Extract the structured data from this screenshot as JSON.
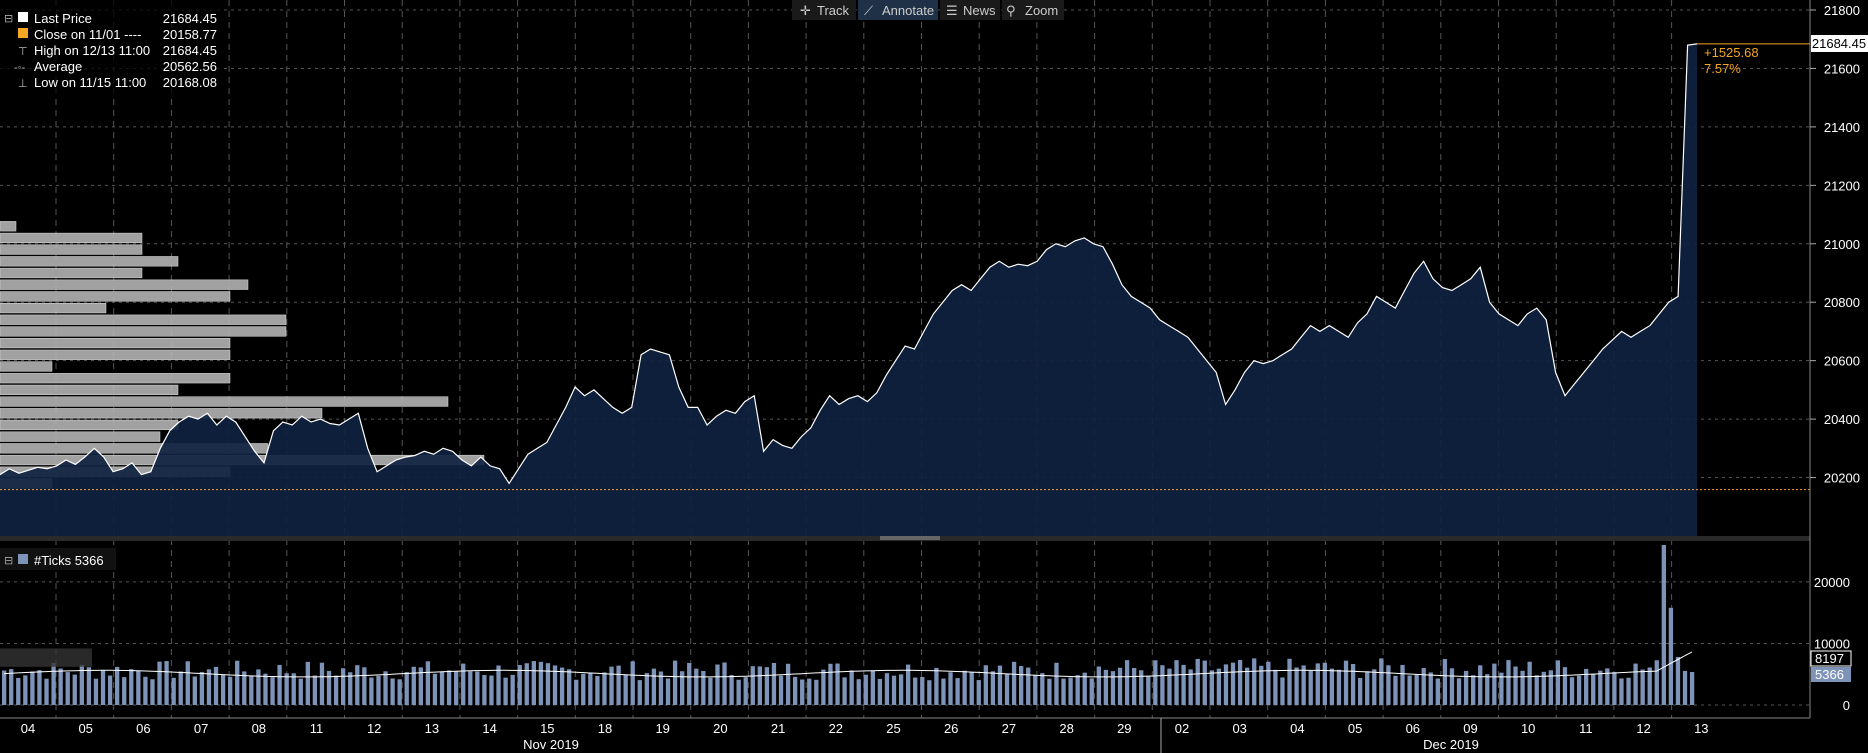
{
  "toolbar": {
    "items": [
      {
        "name": "track",
        "label": "Track",
        "icon": "crosshair-icon"
      },
      {
        "name": "annotate",
        "label": "Annotate",
        "icon": "pencil-icon",
        "active": true
      },
      {
        "name": "news",
        "label": "News",
        "icon": "news-icon"
      },
      {
        "name": "zoom",
        "label": "Zoom",
        "icon": "magnifier-icon"
      }
    ]
  },
  "legend": [
    {
      "label": "Last Price",
      "value": "21684.45",
      "color": "#ffffff"
    },
    {
      "label": "Close on 11/01 ----",
      "value": "20158.77",
      "color": "#f5a623"
    },
    {
      "label": "High on 12/13 11:00",
      "value": "21684.45",
      "color": "#bbbbbb"
    },
    {
      "label": "Average",
      "value": "20562.56",
      "color": "#bbbbbb"
    },
    {
      "label": "Low on 11/15 11:00",
      "value": "20168.08",
      "color": "#bbbbbb"
    }
  ],
  "change": {
    "abs": "+1525.68",
    "pct": "7.57%",
    "color": "#f5a623"
  },
  "last_price_tag": "21684.45",
  "ticks_label": "#Ticks 5366",
  "volume_tags": [
    "8197",
    "5366"
  ],
  "colors": {
    "area": "#0f2240",
    "line": "#ffffff",
    "bar": "#7e93b8",
    "ref_line": "#f5a623",
    "grid": "#555555"
  },
  "chart_data": {
    "type": "area",
    "close_reference": 20158.77,
    "y_ticks": [
      "20200",
      "20400",
      "20600",
      "20800",
      "21000",
      "21200",
      "21400",
      "21600",
      "21800"
    ],
    "vol_ticks": [
      "0",
      "10000",
      "20000"
    ],
    "x_days": [
      "04",
      "05",
      "06",
      "07",
      "08",
      "11",
      "12",
      "13",
      "14",
      "15",
      "18",
      "19",
      "20",
      "21",
      "22",
      "25",
      "26",
      "27",
      "28",
      "29",
      "02",
      "03",
      "04",
      "05",
      "06",
      "09",
      "10",
      "11",
      "12",
      "13"
    ],
    "months": [
      {
        "label": "Nov 2019"
      },
      {
        "label": "Dec 2019"
      }
    ],
    "price": [
      [
        0,
        20210
      ],
      [
        2,
        20230
      ],
      [
        4,
        20215
      ],
      [
        6,
        20225
      ],
      [
        8,
        20235
      ],
      [
        10,
        20230
      ],
      [
        12,
        20240
      ],
      [
        14,
        20260
      ],
      [
        16,
        20245
      ],
      [
        18,
        20270
      ],
      [
        20,
        20300
      ],
      [
        22,
        20270
      ],
      [
        24,
        20220
      ],
      [
        26,
        20230
      ],
      [
        28,
        20250
      ],
      [
        30,
        20210
      ],
      [
        32,
        20220
      ],
      [
        34,
        20300
      ],
      [
        36,
        20360
      ],
      [
        38,
        20390
      ],
      [
        40,
        20410
      ],
      [
        42,
        20400
      ],
      [
        44,
        20420
      ],
      [
        46,
        20380
      ],
      [
        48,
        20410
      ],
      [
        50,
        20390
      ],
      [
        52,
        20340
      ],
      [
        54,
        20290
      ],
      [
        56,
        20250
      ],
      [
        58,
        20360
      ],
      [
        60,
        20390
      ],
      [
        62,
        20380
      ],
      [
        64,
        20410
      ],
      [
        66,
        20390
      ],
      [
        68,
        20400
      ],
      [
        70,
        20385
      ],
      [
        72,
        20380
      ],
      [
        74,
        20400
      ],
      [
        76,
        20420
      ],
      [
        78,
        20300
      ],
      [
        80,
        20220
      ],
      [
        82,
        20240
      ],
      [
        84,
        20260
      ],
      [
        86,
        20270
      ],
      [
        88,
        20275
      ],
      [
        90,
        20290
      ],
      [
        92,
        20280
      ],
      [
        94,
        20300
      ],
      [
        96,
        20290
      ],
      [
        98,
        20260
      ],
      [
        100,
        20240
      ],
      [
        102,
        20270
      ],
      [
        104,
        20240
      ],
      [
        106,
        20230
      ],
      [
        108,
        20180
      ],
      [
        110,
        20230
      ],
      [
        112,
        20280
      ],
      [
        114,
        20300
      ],
      [
        116,
        20320
      ],
      [
        118,
        20380
      ],
      [
        120,
        20440
      ],
      [
        122,
        20510
      ],
      [
        124,
        20480
      ],
      [
        126,
        20500
      ],
      [
        128,
        20470
      ],
      [
        130,
        20440
      ],
      [
        132,
        20420
      ],
      [
        134,
        20440
      ],
      [
        136,
        20620
      ],
      [
        138,
        20640
      ],
      [
        140,
        20630
      ],
      [
        142,
        20620
      ],
      [
        144,
        20510
      ],
      [
        146,
        20440
      ],
      [
        148,
        20440
      ],
      [
        150,
        20380
      ],
      [
        152,
        20410
      ],
      [
        154,
        20430
      ],
      [
        156,
        20420
      ],
      [
        158,
        20460
      ],
      [
        160,
        20480
      ],
      [
        162,
        20290
      ],
      [
        164,
        20330
      ],
      [
        166,
        20310
      ],
      [
        168,
        20300
      ],
      [
        170,
        20340
      ],
      [
        172,
        20370
      ],
      [
        174,
        20430
      ],
      [
        176,
        20480
      ],
      [
        178,
        20450
      ],
      [
        180,
        20470
      ],
      [
        182,
        20480
      ],
      [
        184,
        20460
      ],
      [
        186,
        20490
      ],
      [
        188,
        20550
      ],
      [
        190,
        20600
      ],
      [
        192,
        20650
      ],
      [
        194,
        20640
      ],
      [
        196,
        20700
      ],
      [
        198,
        20760
      ],
      [
        200,
        20800
      ],
      [
        202,
        20840
      ],
      [
        204,
        20860
      ],
      [
        206,
        20840
      ],
      [
        208,
        20880
      ],
      [
        210,
        20920
      ],
      [
        212,
        20940
      ],
      [
        214,
        20920
      ],
      [
        216,
        20930
      ],
      [
        218,
        20925
      ],
      [
        220,
        20940
      ],
      [
        222,
        20980
      ],
      [
        224,
        21000
      ],
      [
        226,
        20990
      ],
      [
        228,
        21010
      ],
      [
        230,
        21020
      ],
      [
        232,
        21000
      ],
      [
        234,
        20990
      ],
      [
        236,
        20930
      ],
      [
        238,
        20860
      ],
      [
        240,
        20820
      ],
      [
        242,
        20800
      ],
      [
        244,
        20780
      ],
      [
        246,
        20740
      ],
      [
        248,
        20720
      ],
      [
        250,
        20700
      ],
      [
        252,
        20680
      ],
      [
        254,
        20640
      ],
      [
        256,
        20600
      ],
      [
        258,
        20560
      ],
      [
        260,
        20450
      ],
      [
        262,
        20500
      ],
      [
        264,
        20560
      ],
      [
        266,
        20600
      ],
      [
        268,
        20590
      ],
      [
        270,
        20600
      ],
      [
        272,
        20620
      ],
      [
        274,
        20640
      ],
      [
        276,
        20680
      ],
      [
        278,
        20720
      ],
      [
        280,
        20700
      ],
      [
        282,
        20720
      ],
      [
        284,
        20700
      ],
      [
        286,
        20680
      ],
      [
        288,
        20730
      ],
      [
        290,
        20760
      ],
      [
        292,
        20820
      ],
      [
        294,
        20800
      ],
      [
        296,
        20780
      ],
      [
        298,
        20840
      ],
      [
        300,
        20900
      ],
      [
        302,
        20940
      ],
      [
        304,
        20880
      ],
      [
        306,
        20850
      ],
      [
        308,
        20840
      ],
      [
        310,
        20860
      ],
      [
        312,
        20880
      ],
      [
        314,
        20920
      ],
      [
        316,
        20800
      ],
      [
        318,
        20760
      ],
      [
        320,
        20740
      ],
      [
        322,
        20720
      ],
      [
        324,
        20760
      ],
      [
        326,
        20780
      ],
      [
        328,
        20740
      ],
      [
        330,
        20560
      ],
      [
        332,
        20480
      ],
      [
        334,
        20520
      ],
      [
        336,
        20560
      ],
      [
        338,
        20600
      ],
      [
        340,
        20640
      ],
      [
        342,
        20670
      ],
      [
        344,
        20700
      ],
      [
        346,
        20680
      ],
      [
        348,
        20700
      ],
      [
        350,
        20720
      ],
      [
        352,
        20760
      ],
      [
        354,
        20800
      ],
      [
        356,
        20820
      ],
      [
        358,
        21680
      ],
      [
        360,
        21684
      ]
    ],
    "price_ylim": [
      20000,
      21800
    ],
    "volume_ylim": [
      0,
      26000
    ],
    "volume_average": 5366,
    "volume_last": 8197
  }
}
